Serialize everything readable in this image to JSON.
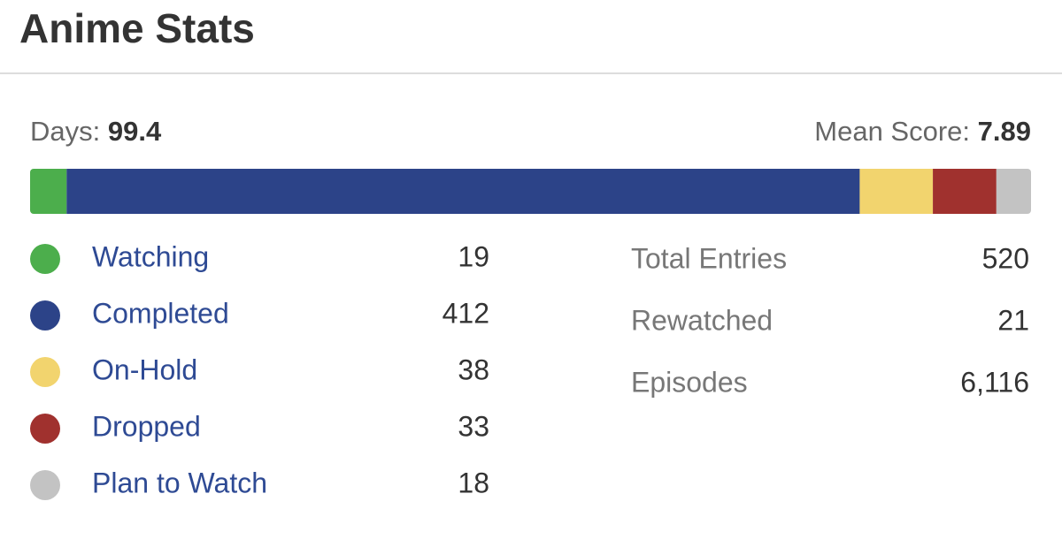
{
  "header": {
    "title": "Anime Stats"
  },
  "summary": {
    "days": {
      "label": "Days:",
      "value": 99.4
    },
    "mean_score": {
      "label": "Mean Score:",
      "value": 7.89
    }
  },
  "statuses": [
    {
      "name": "Watching",
      "count": 19,
      "color": "#4cae4c"
    },
    {
      "name": "Completed",
      "count": 412,
      "color": "#2c4388"
    },
    {
      "name": "On-Hold",
      "count": 38,
      "color": "#f2d46e"
    },
    {
      "name": "Dropped",
      "count": 33,
      "color": "#a0312e"
    },
    {
      "name": "Plan to Watch",
      "count": 18,
      "color": "#c3c3c3"
    }
  ],
  "totals": [
    {
      "label": "Total Entries",
      "value": 520
    },
    {
      "label": "Rewatched",
      "value": 21
    },
    {
      "label": "Episodes",
      "value": "6,116"
    }
  ]
}
